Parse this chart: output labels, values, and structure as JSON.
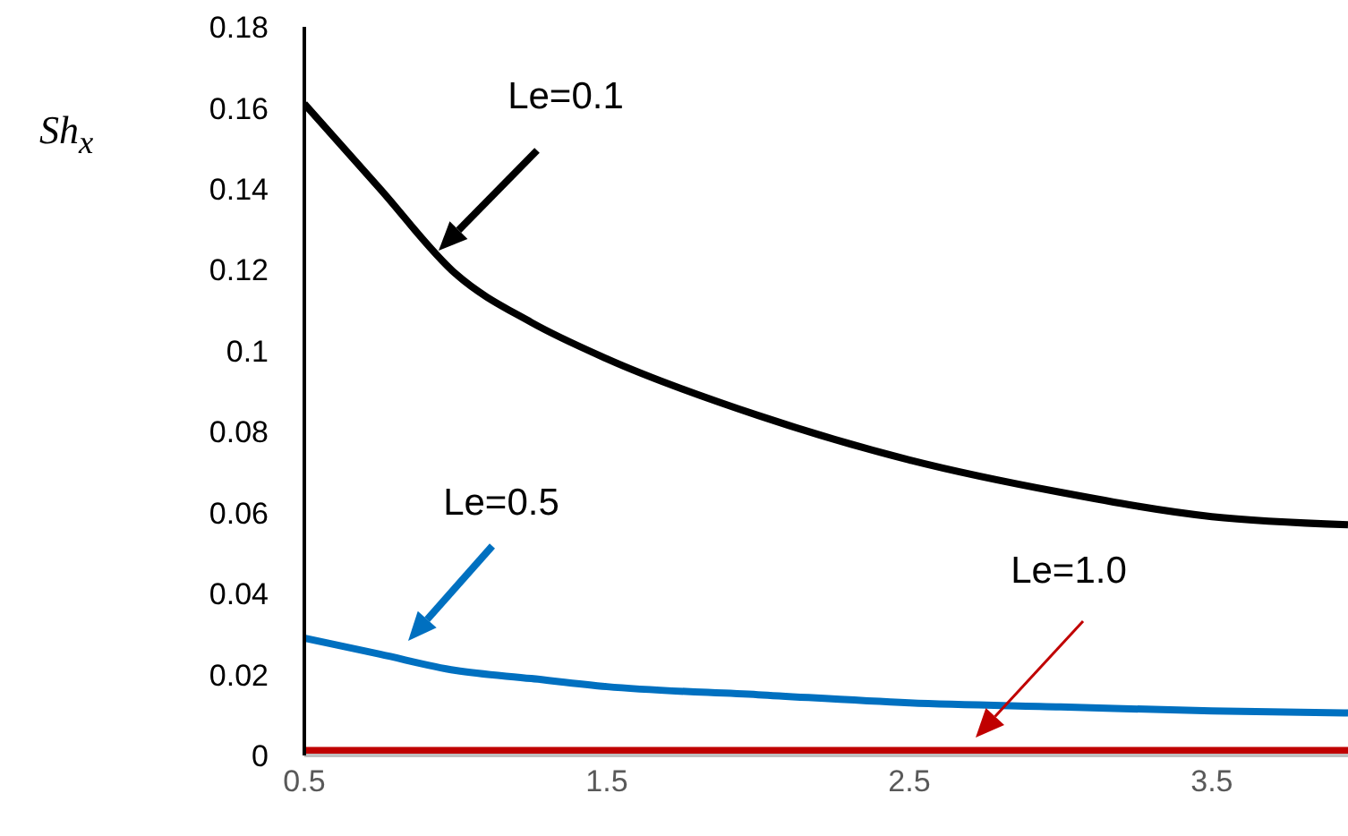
{
  "chart_data": {
    "type": "line",
    "ylabel": "Sh$_{x}$",
    "x": [
      0.5,
      0.75,
      1.0,
      1.25,
      1.5,
      2.0,
      2.5,
      3.0,
      3.5,
      3.95
    ],
    "series": [
      {
        "color": "#000000",
        "values": [
          0.161,
          0.14,
          0.119,
          0.107,
          0.098,
          0.084,
          0.073,
          0.065,
          0.059,
          0.057
        ]
      },
      {
        "color": "#0070c0",
        "values": [
          0.029,
          0.025,
          0.021,
          0.019,
          0.017,
          0.015,
          0.013,
          0.012,
          0.011,
          0.0105
        ]
      },
      {
        "color": "#c00000",
        "values": [
          0.001,
          0.001,
          0.001,
          0.001,
          0.001,
          0.001,
          0.001,
          0.001,
          0.001,
          0.001
        ]
      }
    ],
    "xlim": [
      0.5,
      3.95
    ],
    "xticks": [
      0.5,
      1.5,
      2.5,
      3.5
    ],
    "ylim": [
      0,
      0.18
    ],
    "yticks": [
      0,
      0.02,
      0.04,
      0.06,
      0.08,
      0.1,
      0.12,
      0.14,
      0.16,
      0.18
    ],
    "grid": false,
    "marker": "none",
    "line_style": "solid",
    "annotations": [
      "Le=0.1",
      "Le=0.5",
      "Le=1.0"
    ]
  }
}
